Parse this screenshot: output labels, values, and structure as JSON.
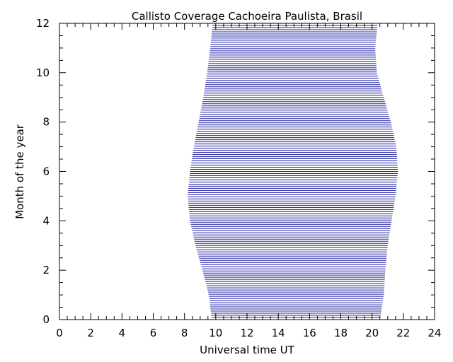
{
  "chart_data": {
    "type": "area",
    "title": "Callisto Coverage Cachoeira Paulista, Brasil",
    "xlabel": "Universal time UT",
    "ylabel": "Month of the year",
    "xlim": [
      0,
      24
    ],
    "ylim": [
      0,
      12
    ],
    "xticks": [
      0,
      2,
      4,
      6,
      8,
      10,
      12,
      14,
      16,
      18,
      20,
      22,
      24
    ],
    "yticks": [
      0,
      2,
      4,
      6,
      8,
      10,
      12
    ],
    "grid": false,
    "fill_color": "#1c1ca0",
    "coverage": {
      "month": [
        0,
        1,
        2,
        3,
        4,
        5,
        6,
        7,
        8,
        9,
        10,
        11,
        12
      ],
      "start_ut": [
        9.75,
        9.55,
        9.15,
        8.7,
        8.35,
        8.2,
        8.35,
        8.6,
        8.9,
        9.2,
        9.45,
        9.65,
        9.8
      ],
      "end_ut": [
        20.5,
        20.75,
        20.85,
        21.0,
        21.25,
        21.5,
        21.65,
        21.55,
        21.2,
        20.75,
        20.3,
        20.2,
        20.35
      ]
    }
  }
}
